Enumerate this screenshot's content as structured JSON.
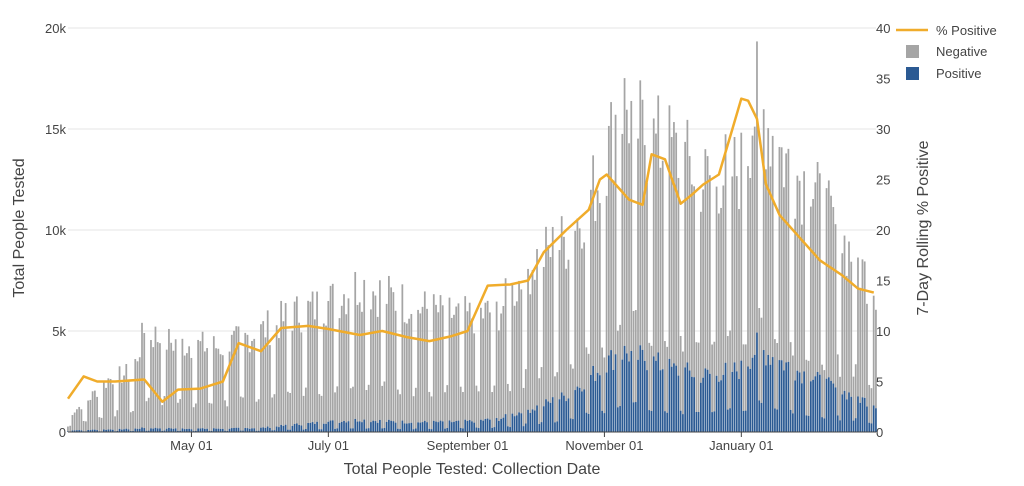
{
  "chart_data": {
    "type": "bar",
    "title": "",
    "xlabel": "Total People Tested: Collection Date",
    "ylabel": "Total People Tested",
    "y2label": "7-Day Rolling % Positive",
    "x_range": [
      "2020-03-07",
      "2021-03-02"
    ],
    "ylim": [
      0,
      20000
    ],
    "y2lim": [
      0,
      40
    ],
    "x_ticks": [
      {
        "date": "2020-05-01",
        "label": "May 01"
      },
      {
        "date": "2020-07-01",
        "label": "July 01"
      },
      {
        "date": "2020-09-01",
        "label": "September 01"
      },
      {
        "date": "2020-11-01",
        "label": "November 01"
      },
      {
        "date": "2021-01-01",
        "label": "January 01"
      }
    ],
    "y_ticks": [
      {
        "value": 0,
        "label": "0"
      },
      {
        "value": 5000,
        "label": "5k"
      },
      {
        "value": 10000,
        "label": "10k"
      },
      {
        "value": 15000,
        "label": "15k"
      },
      {
        "value": 20000,
        "label": "20k"
      }
    ],
    "y2_ticks": [
      {
        "value": 0,
        "label": "0"
      },
      {
        "value": 5,
        "label": "5"
      },
      {
        "value": 10,
        "label": "10"
      },
      {
        "value": 15,
        "label": "15"
      },
      {
        "value": 20,
        "label": "20"
      },
      {
        "value": 25,
        "label": "25"
      },
      {
        "value": 30,
        "label": "30"
      },
      {
        "value": 35,
        "label": "35"
      },
      {
        "value": 40,
        "label": "40"
      }
    ],
    "barmode": "stack",
    "grid": true,
    "legend_position": "top-right",
    "bar_anchors": {
      "dates": [
        "2020-03-07",
        "2020-03-15",
        "2020-03-25",
        "2020-04-05",
        "2020-04-10",
        "2020-04-20",
        "2020-05-01",
        "2020-05-15",
        "2020-06-01",
        "2020-06-15",
        "2020-07-01",
        "2020-07-15",
        "2020-08-01",
        "2020-08-15",
        "2020-09-01",
        "2020-09-15",
        "2020-10-01",
        "2020-10-15",
        "2020-11-01",
        "2020-11-08",
        "2020-11-20",
        "2020-12-01",
        "2020-12-15",
        "2021-01-01",
        "2021-01-08",
        "2021-01-20",
        "2021-02-01",
        "2021-02-15",
        "2021-03-01"
      ],
      "total": [
        800,
        1500,
        2600,
        3000,
        5000,
        4500,
        4300,
        4200,
        5000,
        5800,
        6400,
        7300,
        6500,
        6000,
        5700,
        6000,
        8500,
        9500,
        13000,
        16500,
        14500,
        14000,
        12500,
        13000,
        16500,
        13500,
        12000,
        9500,
        7200
      ],
      "positive": [
        80,
        100,
        120,
        150,
        200,
        180,
        160,
        170,
        200,
        350,
        500,
        600,
        500,
        480,
        520,
        650,
        1200,
        1800,
        3300,
        4000,
        3600,
        3100,
        2800,
        3100,
        4200,
        3400,
        2700,
        2000,
        1400
      ]
    },
    "series": [
      {
        "name": "% Positive",
        "type": "line",
        "axis": "right",
        "x": [
          "2020-03-07",
          "2020-03-14",
          "2020-03-20",
          "2020-03-28",
          "2020-04-10",
          "2020-04-18",
          "2020-04-25",
          "2020-05-05",
          "2020-05-15",
          "2020-05-22",
          "2020-06-01",
          "2020-06-10",
          "2020-06-22",
          "2020-07-01",
          "2020-07-15",
          "2020-07-25",
          "2020-08-05",
          "2020-08-15",
          "2020-08-25",
          "2020-09-01",
          "2020-09-10",
          "2020-09-20",
          "2020-09-28",
          "2020-10-05",
          "2020-10-15",
          "2020-10-25",
          "2020-10-30",
          "2020-11-02",
          "2020-11-06",
          "2020-11-12",
          "2020-11-18",
          "2020-11-22",
          "2020-11-28",
          "2020-12-05",
          "2020-12-10",
          "2020-12-15",
          "2020-12-22",
          "2020-12-28",
          "2021-01-01",
          "2021-01-04",
          "2021-01-08",
          "2021-01-12",
          "2021-01-18",
          "2021-01-26",
          "2021-02-05",
          "2021-02-15",
          "2021-02-22",
          "2021-03-01"
        ],
        "values": [
          3.3,
          5.5,
          5.0,
          5.0,
          5.2,
          3.0,
          4.2,
          4.3,
          5.0,
          8.8,
          8.0,
          10.3,
          10.5,
          10.2,
          9.6,
          10.0,
          9.4,
          9.0,
          9.5,
          10.0,
          14.5,
          14.6,
          15.0,
          17.8,
          20.0,
          22.0,
          25.0,
          25.5,
          24.5,
          23.0,
          22.5,
          27.5,
          27.0,
          22.6,
          23.5,
          24.5,
          25.5,
          30.0,
          33.0,
          32.8,
          31.0,
          24.5,
          21.5,
          19.5,
          17.0,
          15.5,
          14.2,
          13.8
        ]
      },
      {
        "name": "Negative",
        "type": "bar",
        "color": "#a5a5a5"
      },
      {
        "name": "Positive",
        "type": "bar",
        "color": "#2b5a93"
      }
    ],
    "colors": {
      "negative": "#a5a5a5",
      "positive": "#2b5a93",
      "percent_positive": "#f0ac2b",
      "grid": "#e6e6e6",
      "axis_line": "#444444"
    }
  }
}
